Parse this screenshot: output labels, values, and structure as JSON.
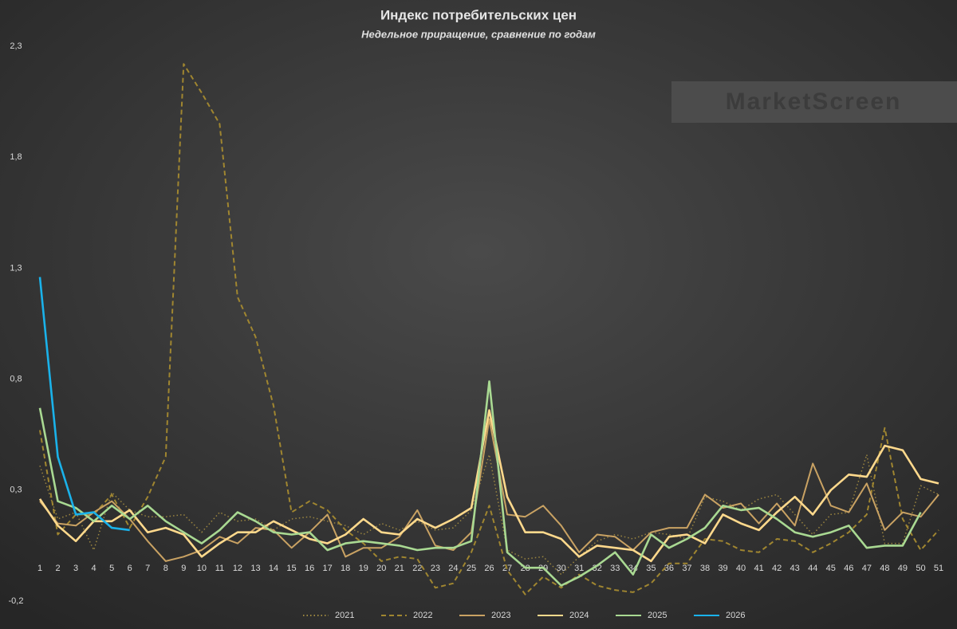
{
  "chart_data": {
    "type": "line",
    "title": "Индекс потребительских цен",
    "subtitle": "Недельное приращение, сравнение по годам",
    "watermark": "MarketScreen",
    "categories": [
      "1",
      "2",
      "3",
      "4",
      "5",
      "6",
      "7",
      "8",
      "9",
      "10",
      "11",
      "12",
      "13",
      "14",
      "15",
      "16",
      "17",
      "18",
      "19",
      "20",
      "21",
      "22",
      "23",
      "24",
      "25",
      "26",
      "27",
      "28",
      "29",
      "30",
      "31",
      "32",
      "33",
      "34",
      "35",
      "36",
      "37",
      "38",
      "39",
      "40",
      "41",
      "42",
      "43",
      "44",
      "45",
      "46",
      "47",
      "48",
      "49",
      "50",
      "51"
    ],
    "ylim": [
      -0.2,
      2.3
    ],
    "yticks": [
      {
        "value": -0.2,
        "label": "-0,2"
      },
      {
        "value": 0.3,
        "label": "0,3"
      },
      {
        "value": 0.8,
        "label": "0,8"
      },
      {
        "value": 1.3,
        "label": "1,3"
      },
      {
        "value": 1.8,
        "label": "1,8"
      },
      {
        "value": 2.3,
        "label": "2,3"
      }
    ],
    "grid": false,
    "legend": "bottom",
    "series": [
      {
        "name": "2021",
        "color": "#9c8640",
        "dash": "dotted",
        "values": [
          0.41,
          0.17,
          0.2,
          0.03,
          0.29,
          0.21,
          0.18,
          0.18,
          0.19,
          0.11,
          0.2,
          0.16,
          0.17,
          0.12,
          0.17,
          0.18,
          0.16,
          0.14,
          0.1,
          0.15,
          0.12,
          0.16,
          0.12,
          0.13,
          0.21,
          0.46,
          0.03,
          -0.01,
          0,
          -0.08,
          0,
          0.07,
          0.1,
          0.08,
          0.11,
          0.1,
          0.08,
          0.27,
          0.25,
          0.21,
          0.26,
          0.28,
          0.19,
          0.1,
          0.19,
          0.2,
          0.46,
          0.06,
          0.06,
          0.32,
          0.28
        ]
      },
      {
        "name": "2022",
        "color": "#a08630",
        "dash": "dashed",
        "values": [
          0.57,
          0.1,
          0.19,
          0.19,
          0.28,
          0.13,
          0.27,
          0.45,
          2.22,
          2.09,
          1.95,
          1.17,
          0.99,
          0.68,
          0.2,
          0.25,
          0.21,
          0.12,
          0.06,
          -0.02,
          0,
          -0.01,
          -0.14,
          -0.12,
          0.02,
          0.23,
          -0.06,
          -0.17,
          -0.09,
          -0.14,
          -0.08,
          -0.13,
          -0.15,
          -0.16,
          -0.12,
          -0.03,
          -0.03,
          0.08,
          0.07,
          0.03,
          0.02,
          0.08,
          0.07,
          0.02,
          0.06,
          0.11,
          0.19,
          0.58,
          0.17,
          0.03,
          0.12
        ]
      },
      {
        "name": "2023",
        "color": "#c9a263",
        "dash": "solid",
        "values": [
          0.25,
          0.15,
          0.14,
          0.2,
          0.25,
          0.17,
          0.07,
          -0.02,
          0,
          0.03,
          0.09,
          0.06,
          0.13,
          0.12,
          0.04,
          0.11,
          0.19,
          0,
          0.04,
          0.04,
          0.09,
          0.21,
          0.05,
          0.03,
          0.11,
          0.62,
          0.19,
          0.18,
          0.23,
          0.14,
          0.02,
          0.1,
          0.09,
          0.03,
          0.11,
          0.13,
          0.13,
          0.28,
          0.22,
          0.24,
          0.15,
          0.24,
          0.14,
          0.42,
          0.23,
          0.2,
          0.33,
          0.12,
          0.2,
          0.18,
          0.28
        ]
      },
      {
        "name": "2024",
        "color": "#ffd98c",
        "dash": "solid",
        "values": [
          0.26,
          0.14,
          0.07,
          0.16,
          0.16,
          0.21,
          0.11,
          0.13,
          0.1,
          0,
          0.06,
          0.11,
          0.11,
          0.16,
          0.12,
          0.08,
          0.06,
          0.1,
          0.17,
          0.11,
          0.1,
          0.17,
          0.13,
          0.17,
          0.22,
          0.66,
          0.27,
          0.11,
          0.11,
          0.08,
          0,
          0.05,
          0.04,
          0.03,
          -0.02,
          0.09,
          0.1,
          0.06,
          0.19,
          0.15,
          0.12,
          0.2,
          0.27,
          0.19,
          0.3,
          0.37,
          0.36,
          0.5,
          0.48,
          0.35,
          0.33
        ]
      },
      {
        "name": "2025",
        "color": "#a9d992",
        "dash": "solid",
        "values": [
          0.67,
          0.25,
          0.22,
          0.16,
          0.23,
          0.17,
          0.23,
          0.16,
          0.11,
          0.06,
          0.12,
          0.2,
          0.16,
          0.11,
          0.1,
          0.11,
          0.03,
          0.06,
          0.07,
          0.06,
          0.05,
          0.03,
          0.04,
          0.04,
          0.07,
          0.79,
          0.02,
          -0.05,
          -0.05,
          -0.13,
          -0.09,
          -0.04,
          0.02,
          -0.08,
          0.1,
          0.04,
          0.08,
          0.13,
          0.23,
          0.21,
          0.22,
          0.17,
          0.11,
          0.09,
          0.11,
          0.14,
          0.04,
          0.05,
          0.05,
          0.2,
          null
        ]
      },
      {
        "name": "2026",
        "color": "#1ab2ea",
        "dash": "solid",
        "values": [
          1.26,
          0.45,
          0.19,
          0.2,
          0.13,
          0.12,
          null,
          null,
          null,
          null,
          null,
          null,
          null,
          null,
          null,
          null,
          null,
          null,
          null,
          null,
          null,
          null,
          null,
          null,
          null,
          null,
          null,
          null,
          null,
          null,
          null,
          null,
          null,
          null,
          null,
          null,
          null,
          null,
          null,
          null,
          null,
          null,
          null,
          null,
          null,
          null,
          null,
          null,
          null,
          null,
          null
        ]
      }
    ]
  }
}
